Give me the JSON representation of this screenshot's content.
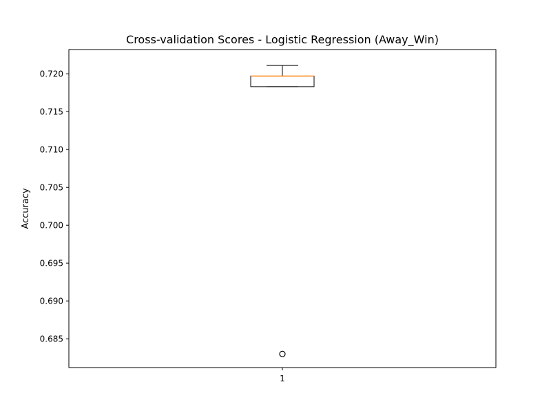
{
  "chart_data": {
    "type": "box",
    "title": "Cross-validation Scores - Logistic Regression (Away_Win)",
    "xlabel": "",
    "ylabel": "Accuracy",
    "categories": [
      "1"
    ],
    "ylim": [
      0.6812,
      0.7232
    ],
    "yticks": [
      0.685,
      0.69,
      0.695,
      0.7,
      0.705,
      0.71,
      0.715,
      0.72
    ],
    "ytick_labels": [
      "0.685",
      "0.690",
      "0.695",
      "0.700",
      "0.705",
      "0.710",
      "0.715",
      "0.720"
    ],
    "boxes": [
      {
        "category": "1",
        "whisker_low": 0.7183,
        "q1": 0.7183,
        "median": 0.7197,
        "q3": 0.7197,
        "whisker_high": 0.7211,
        "outliers": [
          0.683
        ]
      }
    ],
    "grid": false,
    "colors": {
      "box": "#000000",
      "median": "#ff7f0e",
      "whisker": "#000000",
      "outlier_edge": "#000000",
      "frame": "#000000"
    }
  }
}
